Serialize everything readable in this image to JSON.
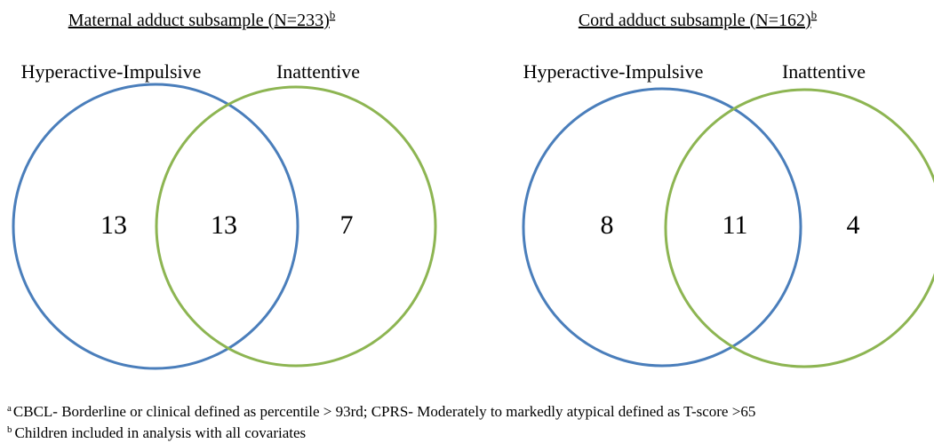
{
  "panels": [
    {
      "title": "Maternal adduct subsample (N=233)",
      "title_sup": "b",
      "sets": [
        "Hyperactive-Impulsive",
        "Inattentive"
      ],
      "regions": [
        "13",
        "13",
        "7"
      ]
    },
    {
      "title": "Cord adduct subsample (N=162)",
      "title_sup": "b",
      "sets": [
        "Hyperactive-Impulsive",
        "Inattentive"
      ],
      "regions": [
        "8",
        "11",
        "4"
      ]
    }
  ],
  "footnotes": [
    {
      "marker": "a",
      "text": "CBCL- Borderline or clinical defined as percentile > 93rd; CPRS- Moderately to markedly atypical defined as T-score >65"
    },
    {
      "marker": "b",
      "text": "Children included in analysis with all covariates"
    }
  ]
}
